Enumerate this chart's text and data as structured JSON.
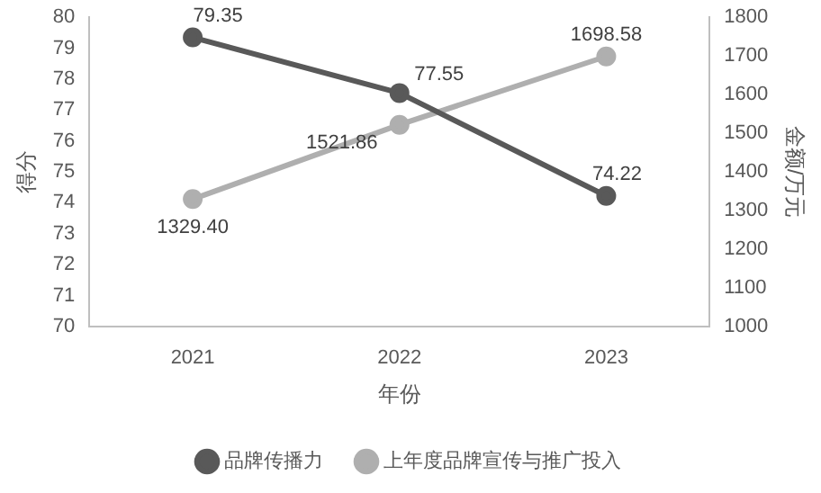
{
  "chart_data": {
    "type": "line",
    "xlabel": "年份",
    "ylabel": "得分",
    "y2label": "金额/万元",
    "categories": [
      "2021",
      "2022",
      "2023"
    ],
    "series": [
      {
        "name": "品牌传播力",
        "color": "#595959",
        "values": [
          79.35,
          77.55,
          74.22
        ],
        "value_labels": [
          "79.35",
          "77.55",
          "74.22"
        ]
      },
      {
        "name": "上年度品牌宣传与推广投入",
        "color": "#afafaf",
        "axis": "y2",
        "values": [
          1329.4,
          1521.86,
          1698.58
        ],
        "value_labels": [
          "1329.40",
          "1521.86",
          "1698.58"
        ]
      }
    ],
    "ylim": [
      70,
      80
    ],
    "yticks": [
      70,
      71,
      72,
      73,
      74,
      75,
      76,
      77,
      78,
      79,
      80
    ],
    "y2lim": [
      1000,
      1800
    ],
    "y2ticks": [
      1000,
      1100,
      1200,
      1300,
      1400,
      1500,
      1600,
      1700,
      1800
    ],
    "grid": false,
    "legend": "bottom",
    "marker": "circle",
    "line_style": "solid"
  }
}
